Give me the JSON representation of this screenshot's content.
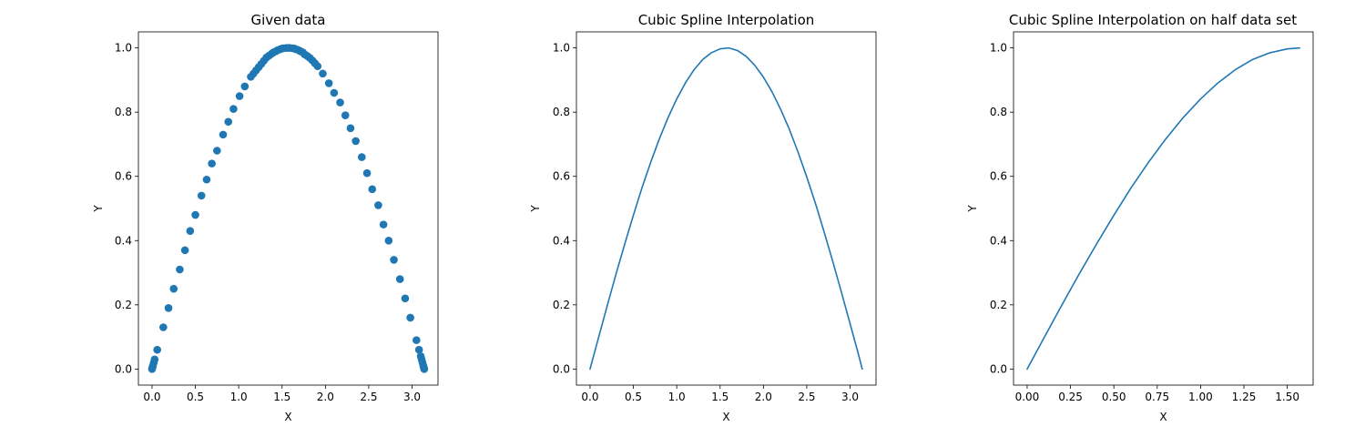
{
  "figure": {
    "background": "#ffffff",
    "series_color": "#1f77b4"
  },
  "chart_data": [
    {
      "type": "scatter",
      "title": "Given data",
      "xlabel": "X",
      "ylabel": "Y",
      "xlim": [
        -0.157,
        3.299
      ],
      "ylim": [
        -0.05,
        1.05
      ],
      "xticks": [
        0.0,
        0.5,
        1.0,
        1.5,
        2.0,
        2.5,
        3.0
      ],
      "xtick_labels": [
        "0.0",
        "0.5",
        "1.0",
        "1.5",
        "2.0",
        "2.5",
        "3.0"
      ],
      "yticks": [
        0.0,
        0.2,
        0.4,
        0.6,
        0.8,
        1.0
      ],
      "ytick_labels": [
        "0.0",
        "0.2",
        "0.4",
        "0.6",
        "0.8",
        "1.0"
      ],
      "grid": false,
      "series": [
        {
          "function": "sin(x)",
          "x": [
            0.0,
            0.005,
            0.01,
            0.02,
            0.03,
            0.06,
            0.13,
            0.19,
            0.25,
            0.32,
            0.38,
            0.44,
            0.5,
            0.57,
            0.63,
            0.69,
            0.75,
            0.82,
            0.88,
            0.94,
            1.01,
            1.07,
            1.14,
            1.17,
            1.2,
            1.23,
            1.26,
            1.29,
            1.32,
            1.35,
            1.38,
            1.4,
            1.43,
            1.45,
            1.48,
            1.5,
            1.52,
            1.55,
            1.57,
            1.59,
            1.62,
            1.64,
            1.66,
            1.69,
            1.71,
            1.74,
            1.76,
            1.79,
            1.82,
            1.85,
            1.88,
            1.91,
            1.97,
            2.04,
            2.1,
            2.17,
            2.23,
            2.29,
            2.35,
            2.42,
            2.48,
            2.54,
            2.61,
            2.67,
            2.73,
            2.79,
            2.86,
            2.92,
            2.98,
            3.05,
            3.08,
            3.1,
            3.11,
            3.12,
            3.13,
            3.135,
            3.14
          ],
          "y": [
            0.0,
            0.005,
            0.01,
            0.02,
            0.03,
            0.06,
            0.13,
            0.19,
            0.25,
            0.31,
            0.37,
            0.43,
            0.48,
            0.54,
            0.59,
            0.64,
            0.68,
            0.73,
            0.77,
            0.81,
            0.85,
            0.88,
            0.91,
            0.92,
            0.93,
            0.94,
            0.95,
            0.96,
            0.97,
            0.976,
            0.982,
            0.986,
            0.99,
            0.993,
            0.996,
            0.998,
            0.999,
            1.0,
            1.0,
            1.0,
            0.999,
            0.998,
            0.996,
            0.993,
            0.99,
            0.986,
            0.98,
            0.975,
            0.969,
            0.961,
            0.952,
            0.943,
            0.92,
            0.89,
            0.86,
            0.83,
            0.79,
            0.75,
            0.71,
            0.66,
            0.61,
            0.56,
            0.51,
            0.45,
            0.4,
            0.34,
            0.28,
            0.22,
            0.16,
            0.09,
            0.06,
            0.04,
            0.03,
            0.02,
            0.01,
            0.005,
            0.0
          ]
        }
      ]
    },
    {
      "type": "line",
      "title": "Cubic Spline Interpolation",
      "xlabel": "X",
      "ylabel": "Y",
      "xlim": [
        -0.157,
        3.299
      ],
      "ylim": [
        -0.05,
        1.05
      ],
      "xticks": [
        0.0,
        0.5,
        1.0,
        1.5,
        2.0,
        2.5,
        3.0
      ],
      "xtick_labels": [
        "0.0",
        "0.5",
        "1.0",
        "1.5",
        "2.0",
        "2.5",
        "3.0"
      ],
      "yticks": [
        0.0,
        0.2,
        0.4,
        0.6,
        0.8,
        1.0
      ],
      "ytick_labels": [
        "0.0",
        "0.2",
        "0.4",
        "0.6",
        "0.8",
        "1.0"
      ],
      "grid": false,
      "series": [
        {
          "function": "sin(x)",
          "x": [
            0.0,
            0.1,
            0.2,
            0.3,
            0.4,
            0.5,
            0.6,
            0.7,
            0.8,
            0.9,
            1.0,
            1.1,
            1.2,
            1.3,
            1.4,
            1.5,
            1.6,
            1.7,
            1.8,
            1.9,
            2.0,
            2.1,
            2.2,
            2.3,
            2.4,
            2.5,
            2.6,
            2.7,
            2.8,
            2.9,
            3.0,
            3.1,
            3.14
          ],
          "y": [
            0.0,
            0.1,
            0.199,
            0.296,
            0.389,
            0.479,
            0.565,
            0.644,
            0.717,
            0.783,
            0.841,
            0.891,
            0.932,
            0.964,
            0.985,
            0.997,
            1.0,
            0.992,
            0.974,
            0.946,
            0.909,
            0.863,
            0.808,
            0.746,
            0.675,
            0.598,
            0.516,
            0.427,
            0.335,
            0.239,
            0.141,
            0.042,
            0.0
          ]
        }
      ]
    },
    {
      "type": "line",
      "title": "Cubic Spline Interpolation on half data set",
      "xlabel": "X",
      "ylabel": "Y",
      "xlim": [
        -0.0785,
        1.649
      ],
      "ylim": [
        -0.05,
        1.05
      ],
      "xticks": [
        0.0,
        0.25,
        0.5,
        0.75,
        1.0,
        1.25,
        1.5
      ],
      "xtick_labels": [
        "0.00",
        "0.25",
        "0.50",
        "0.75",
        "1.00",
        "1.25",
        "1.50"
      ],
      "yticks": [
        0.0,
        0.2,
        0.4,
        0.6,
        0.8,
        1.0
      ],
      "ytick_labels": [
        "0.0",
        "0.2",
        "0.4",
        "0.6",
        "0.8",
        "1.0"
      ],
      "grid": false,
      "series": [
        {
          "function": "sin(x)",
          "x": [
            0.0,
            0.1,
            0.2,
            0.3,
            0.4,
            0.5,
            0.6,
            0.7,
            0.8,
            0.9,
            1.0,
            1.1,
            1.2,
            1.3,
            1.4,
            1.5,
            1.571
          ],
          "y": [
            0.0,
            0.1,
            0.199,
            0.296,
            0.389,
            0.479,
            0.565,
            0.644,
            0.717,
            0.783,
            0.841,
            0.891,
            0.932,
            0.964,
            0.985,
            0.997,
            1.0
          ]
        }
      ]
    }
  ]
}
